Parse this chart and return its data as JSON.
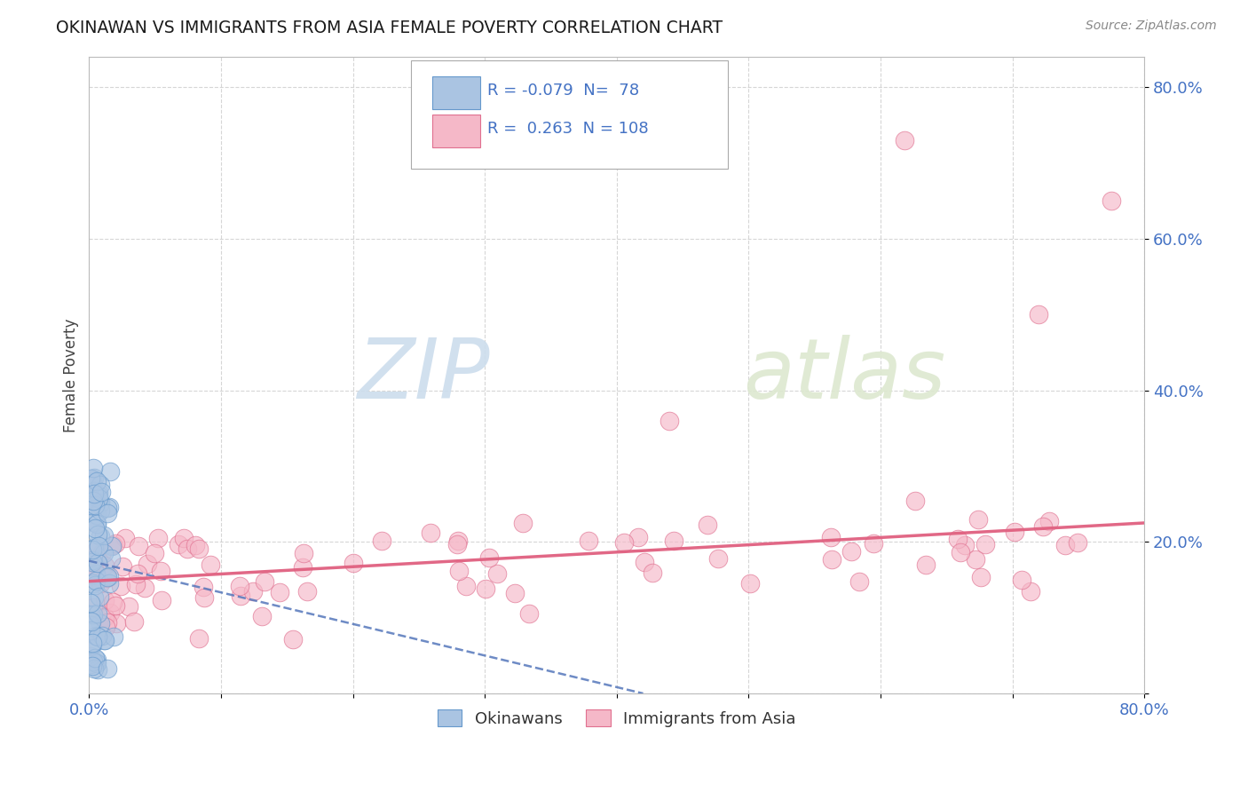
{
  "title": "OKINAWAN VS IMMIGRANTS FROM ASIA FEMALE POVERTY CORRELATION CHART",
  "source": "Source: ZipAtlas.com",
  "ylabel": "Female Poverty",
  "y_tick_labels": [
    "",
    "20.0%",
    "40.0%",
    "60.0%",
    "80.0%"
  ],
  "xlim": [
    0.0,
    0.8
  ],
  "ylim": [
    0.0,
    0.84
  ],
  "okinawan_color": "#aac4e2",
  "immigrant_color": "#f5b8c8",
  "okinawan_edge": "#6699cc",
  "immigrant_edge": "#e07090",
  "trend_okinawan_color": "#5577bb",
  "trend_immigrant_color": "#e06080",
  "legend_R1": "-0.079",
  "legend_N1": "78",
  "legend_R2": "0.263",
  "legend_N2": "108",
  "legend_label1": "Okinawans",
  "legend_label2": "Immigrants from Asia",
  "background_color": "#ffffff",
  "grid_color": "#cccccc",
  "watermark_zip": "ZIP",
  "watermark_atlas": "atlas",
  "ok_trend_x0": 0.0,
  "ok_trend_x1": 0.42,
  "ok_trend_y0": 0.175,
  "ok_trend_y1": 0.0,
  "im_trend_x0": 0.0,
  "im_trend_x1": 0.8,
  "im_trend_y0": 0.148,
  "im_trend_y1": 0.225
}
